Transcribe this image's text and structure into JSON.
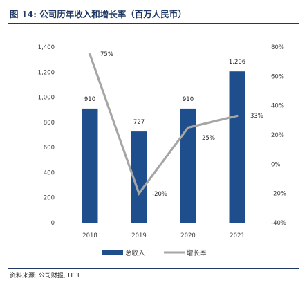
{
  "header": {
    "title": "图 14:  公司历年收入和增长率（百万人民币）"
  },
  "footer": {
    "source": "资料来源:  公司财报, HTI"
  },
  "chart_data": {
    "type": "bar",
    "categories": [
      "2018",
      "2019",
      "2020",
      "2021"
    ],
    "series": [
      {
        "name": "总收入",
        "kind": "bar",
        "axis": "left",
        "color": "#1f4e8c",
        "values": [
          910,
          727,
          910,
          1206
        ],
        "labels": [
          "910",
          "727",
          "910",
          "1,206"
        ]
      },
      {
        "name": "增长率",
        "kind": "line",
        "axis": "right",
        "color": "#a6a6a6",
        "values": [
          75,
          -20,
          25,
          33
        ],
        "labels": [
          "75%",
          "-20%",
          "25%",
          "33%"
        ]
      }
    ],
    "ylim_left": [
      0,
      1400
    ],
    "yticks_left": [
      "0",
      "200",
      "400",
      "600",
      "800",
      "1,000",
      "1,200",
      "1,400"
    ],
    "ylim_right": [
      -40,
      80
    ],
    "yticks_right": [
      "-40%",
      "-20%",
      "0%",
      "20%",
      "40%",
      "60%",
      "80%"
    ],
    "grid": false,
    "legend_position": "bottom"
  }
}
